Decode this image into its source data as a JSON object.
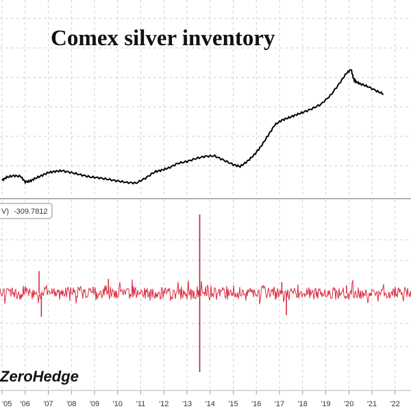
{
  "chart_data": [
    {
      "type": "line",
      "title": "Comex silver inventory",
      "color": "#000000",
      "grid": true,
      "x": [
        2005.0,
        2005.2,
        2005.5,
        2005.8,
        2006.0,
        2006.2,
        2006.4,
        2006.7,
        2007.0,
        2007.3,
        2007.6,
        2008.0,
        2008.4,
        2008.8,
        2009.2,
        2009.6,
        2010.0,
        2010.4,
        2010.8,
        2011.2,
        2011.6,
        2011.9,
        2012.2,
        2012.6,
        2013.0,
        2013.4,
        2013.8,
        2014.2,
        2014.6,
        2015.0,
        2015.3,
        2015.6,
        2015.9,
        2016.2,
        2016.5,
        2016.8,
        2017.1,
        2017.4,
        2017.7,
        2018.0,
        2018.4,
        2018.8,
        2019.2,
        2019.6,
        2019.9,
        2020.1,
        2020.2,
        2020.3,
        2020.5,
        2020.8,
        2021.2,
        2021.5
      ],
      "values": [
        0.15,
        0.25,
        0.3,
        0.28,
        0.1,
        0.12,
        0.2,
        0.3,
        0.4,
        0.44,
        0.46,
        0.4,
        0.33,
        0.26,
        0.23,
        0.18,
        0.13,
        0.08,
        0.06,
        0.22,
        0.42,
        0.48,
        0.55,
        0.7,
        0.76,
        0.86,
        0.93,
        0.94,
        0.8,
        0.66,
        0.6,
        0.76,
        0.97,
        1.25,
        1.6,
        1.95,
        2.1,
        2.18,
        2.27,
        2.35,
        2.47,
        2.62,
        2.9,
        3.3,
        3.63,
        3.75,
        3.45,
        3.35,
        3.28,
        3.2,
        3.05,
        2.95
      ]
    },
    {
      "type": "line",
      "label_value": "-309.7812",
      "color": "#d8283e",
      "grid": true,
      "x_ticks": [
        "'05",
        "'06",
        "'07",
        "'08",
        "'09",
        "'10",
        "'11",
        "'12",
        "'13",
        "'14",
        "'15",
        "'16",
        "'17",
        "'18",
        "'19",
        "'20",
        "'21",
        "'22"
      ],
      "spikes": [
        {
          "x": 2006.6,
          "value": 0.28
        },
        {
          "x": 2006.7,
          "value": -0.3
        },
        {
          "x": 2009.6,
          "value": 0.18
        },
        {
          "x": 2013.55,
          "value": 1.0
        },
        {
          "x": 2013.55,
          "value": -1.0
        },
        {
          "x": 2017.1,
          "value": 0.14
        },
        {
          "x": 2017.3,
          "value": -0.28
        },
        {
          "x": 2019.9,
          "value": 0.1
        }
      ]
    }
  ],
  "watermark": "ZeroHedge",
  "badge": {
    "prefix": "V)",
    "value": "-309.7812"
  }
}
